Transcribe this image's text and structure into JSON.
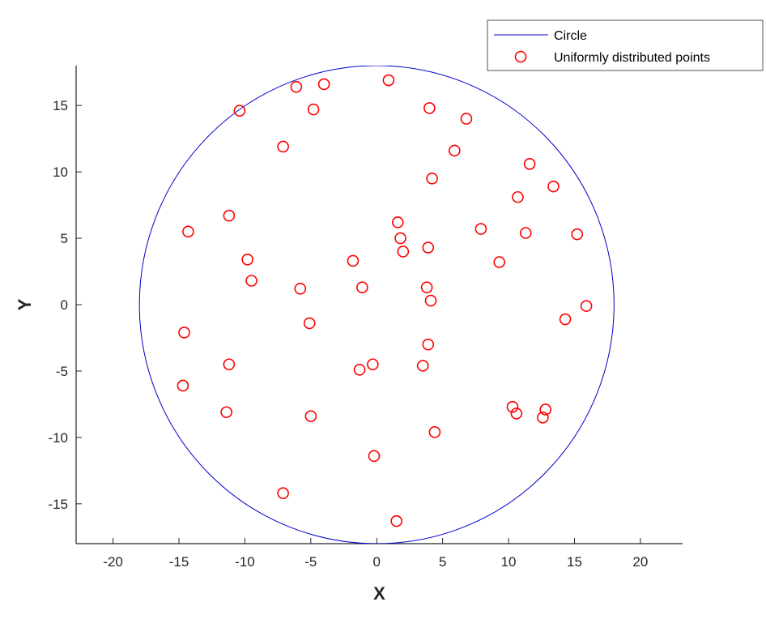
{
  "chart_data": {
    "type": "scatter",
    "title": "",
    "xlabel": "X",
    "ylabel": "Y",
    "xlim": [
      -22.8,
      23.2
    ],
    "ylim": [
      -18,
      18
    ],
    "xticks": [
      -20,
      -15,
      -10,
      -5,
      0,
      5,
      10,
      15,
      20
    ],
    "yticks": [
      -15,
      -10,
      -5,
      0,
      5,
      10,
      15
    ],
    "grid": false,
    "legend_position": "top-right",
    "circle": {
      "name": "Circle",
      "center": [
        0,
        0
      ],
      "radius": 18,
      "color": "#0000cc"
    },
    "series": [
      {
        "name": "Uniformly distributed points",
        "marker": "open-circle",
        "color": "#ff0000",
        "x": [
          0.9,
          -6.1,
          -4.0,
          -10.4,
          -4.8,
          4.0,
          6.8,
          -7.1,
          5.9,
          11.6,
          4.2,
          13.4,
          10.7,
          -11.2,
          1.6,
          1.8,
          7.9,
          11.3,
          15.2,
          -14.3,
          3.9,
          2.0,
          -9.8,
          -1.8,
          9.3,
          -9.5,
          -5.8,
          -1.1,
          3.8,
          4.1,
          15.9,
          14.3,
          -5.1,
          -14.6,
          3.9,
          -11.2,
          -0.3,
          -1.3,
          3.5,
          -14.7,
          10.3,
          12.8,
          10.6,
          12.6,
          -11.4,
          -5.0,
          4.4,
          -0.2,
          -7.1,
          1.5
        ],
        "y": [
          16.9,
          16.4,
          16.6,
          14.6,
          14.7,
          14.8,
          14.0,
          11.9,
          11.6,
          10.6,
          9.5,
          8.9,
          8.1,
          6.7,
          6.2,
          5.0,
          5.7,
          5.4,
          5.3,
          5.5,
          4.3,
          4.0,
          3.4,
          3.3,
          3.2,
          1.8,
          1.2,
          1.3,
          1.3,
          0.3,
          -0.1,
          -1.1,
          -1.4,
          -2.1,
          -3.0,
          -4.5,
          -4.5,
          -4.9,
          -4.6,
          -6.1,
          -7.7,
          -7.9,
          -8.2,
          -8.5,
          -8.1,
          -8.4,
          -9.6,
          -11.4,
          -14.2,
          -16.3
        ]
      }
    ]
  }
}
